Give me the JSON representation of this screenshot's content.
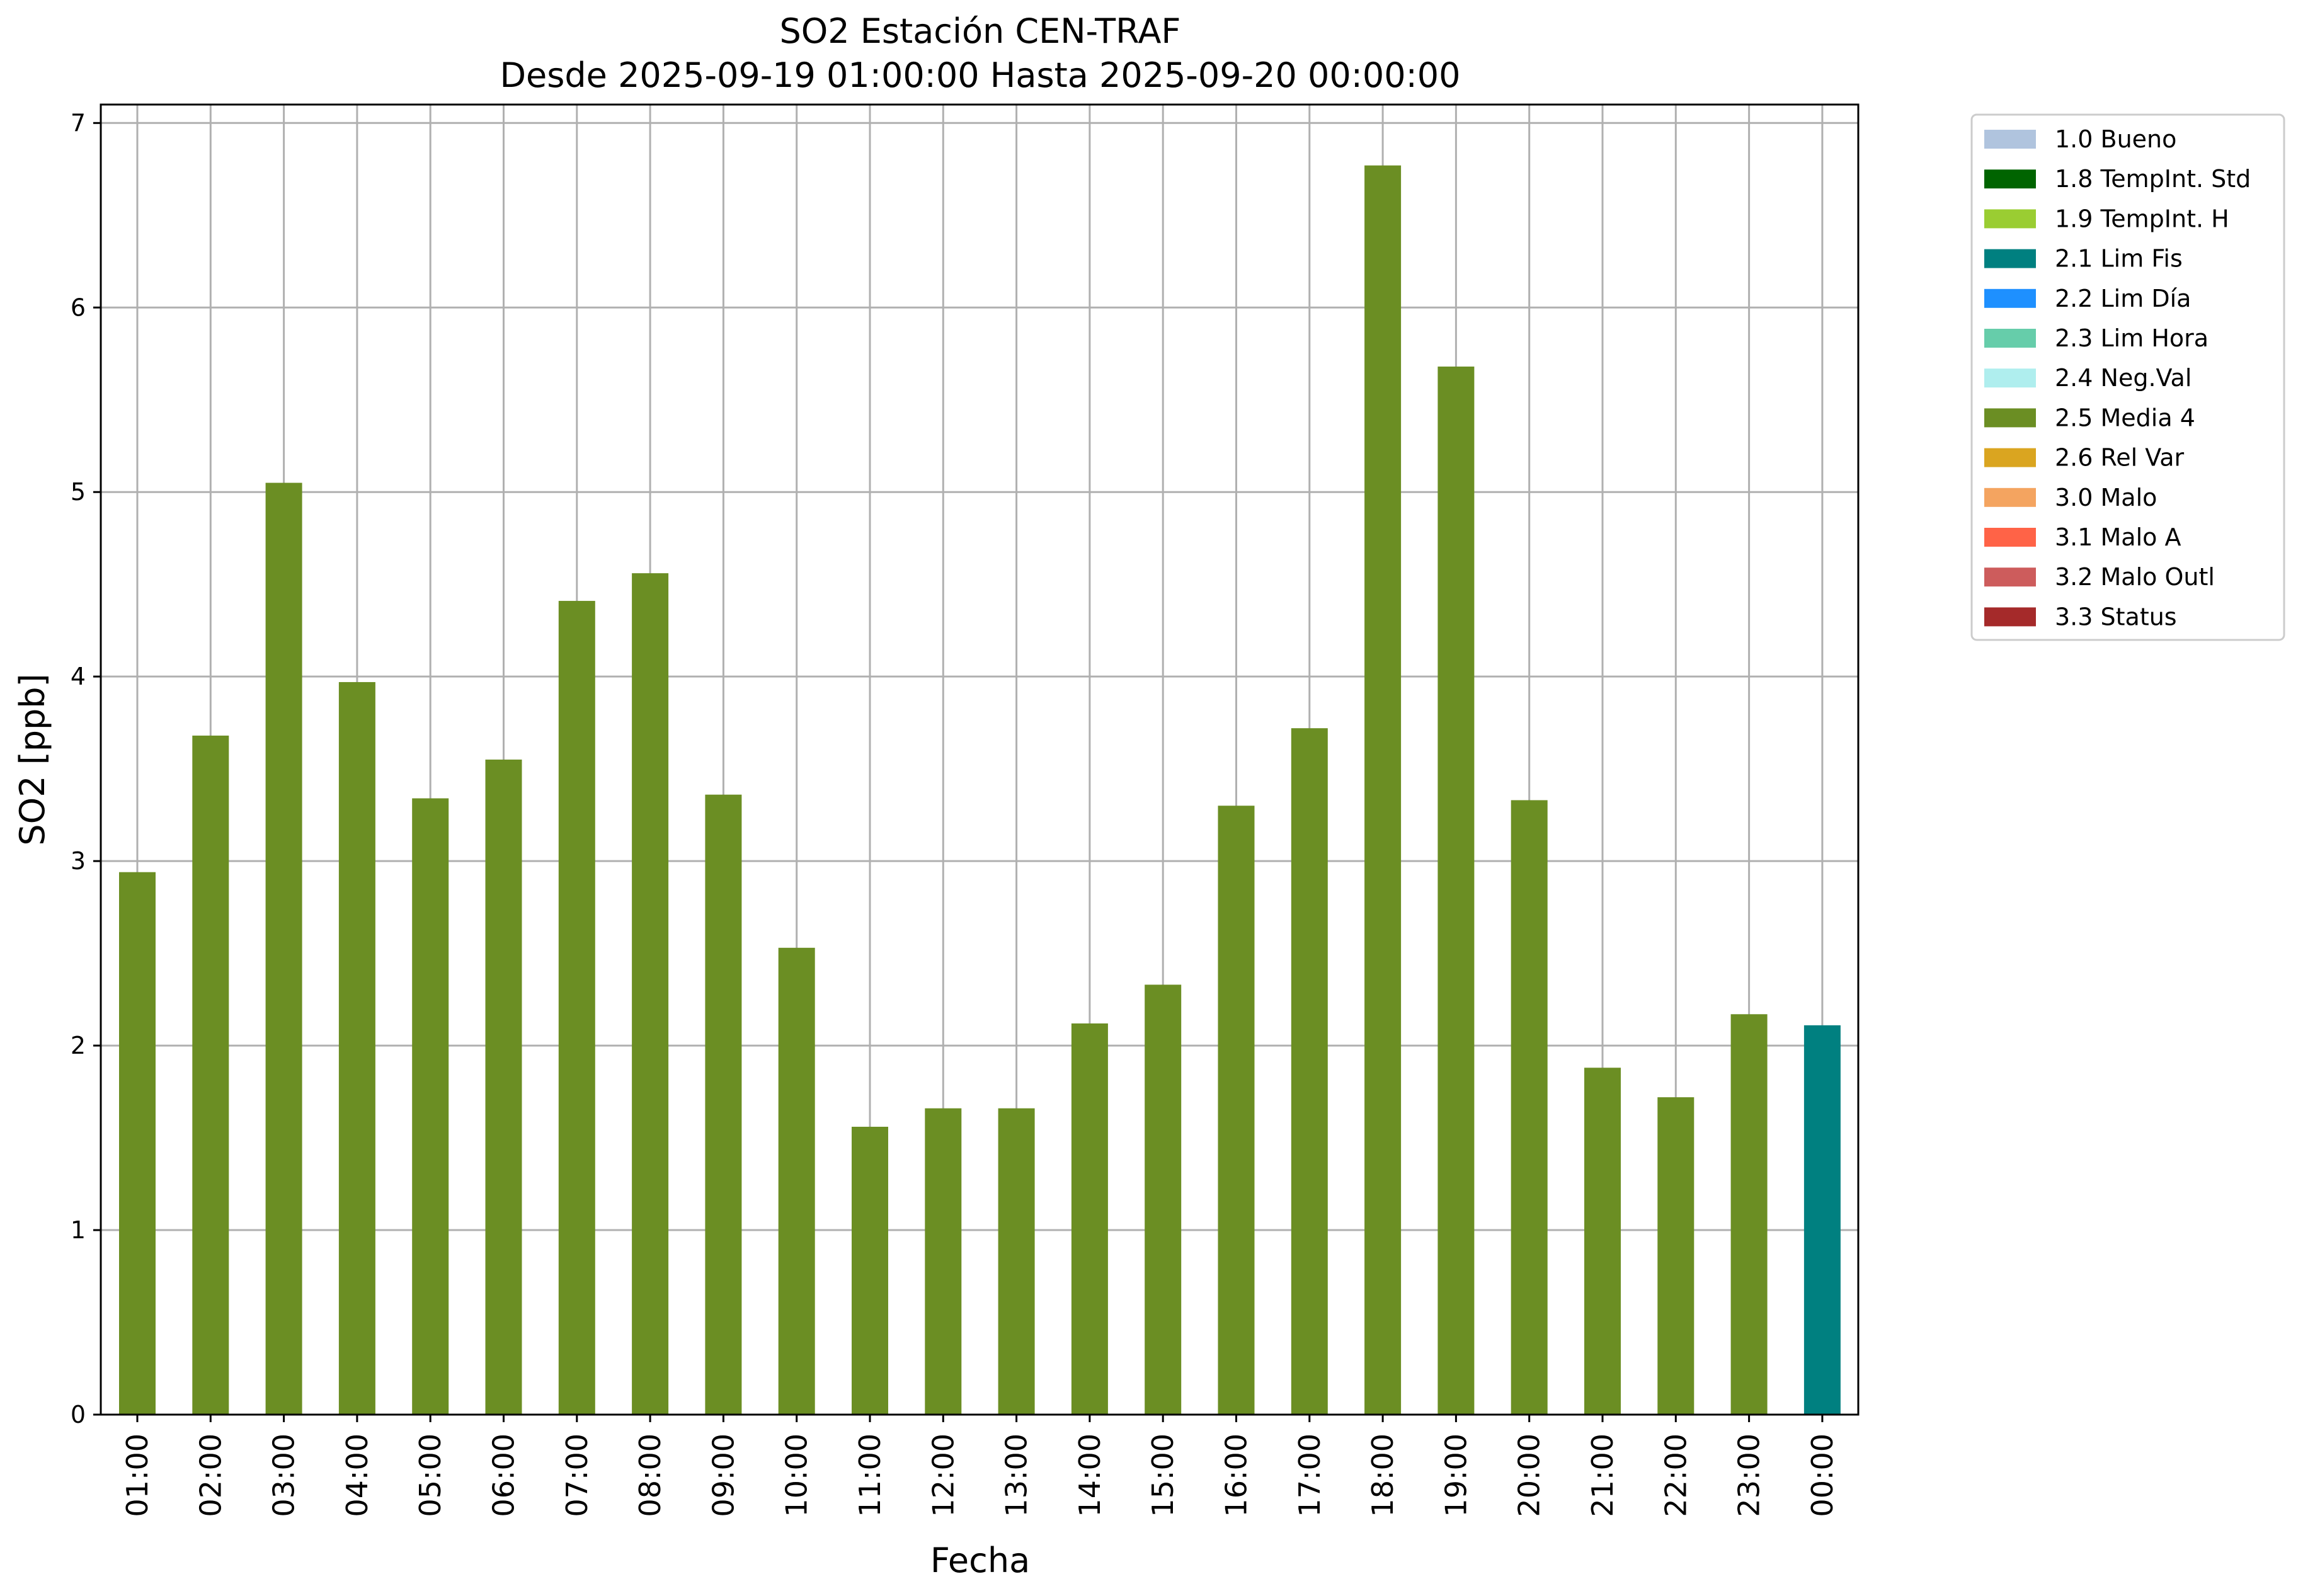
{
  "chart_data": {
    "type": "bar",
    "title": "SO2 Estación CEN-TRAF",
    "subtitle": "Desde 2025-09-19 01:00:00 Hasta 2025-09-20 00:00:00",
    "xlabel": "Fecha",
    "ylabel": "SO2 [ppb]",
    "ylim": [
      0,
      7.1
    ],
    "yticks": [
      "0",
      "1",
      "2",
      "3",
      "4",
      "5",
      "6",
      "7"
    ],
    "grid": true,
    "legend_position": "outside top-right",
    "categories": [
      "01:00",
      "02:00",
      "03:00",
      "04:00",
      "05:00",
      "06:00",
      "07:00",
      "08:00",
      "09:00",
      "10:00",
      "11:00",
      "12:00",
      "13:00",
      "14:00",
      "15:00",
      "16:00",
      "17:00",
      "18:00",
      "19:00",
      "20:00",
      "21:00",
      "22:00",
      "23:00",
      "00:00"
    ],
    "values": [
      2.94,
      3.68,
      5.05,
      3.97,
      3.34,
      3.55,
      4.41,
      4.56,
      3.36,
      2.53,
      1.56,
      1.66,
      1.66,
      2.12,
      2.33,
      3.3,
      3.72,
      6.77,
      5.68,
      3.33,
      1.88,
      1.72,
      2.17,
      2.11
    ],
    "flags": [
      "2.5 Media 4",
      "2.5 Media 4",
      "2.5 Media 4",
      "2.5 Media 4",
      "2.5 Media 4",
      "2.5 Media 4",
      "2.5 Media 4",
      "2.5 Media 4",
      "2.5 Media 4",
      "2.5 Media 4",
      "2.5 Media 4",
      "2.5 Media 4",
      "2.5 Media 4",
      "2.5 Media 4",
      "2.5 Media 4",
      "2.5 Media 4",
      "2.5 Media 4",
      "2.5 Media 4",
      "2.5 Media 4",
      "2.5 Media 4",
      "2.5 Media 4",
      "2.5 Media 4",
      "2.5 Media 4",
      "2.1 Lim Fis"
    ],
    "legend": [
      {
        "label": "1.0 Bueno",
        "color": "#b0c4de"
      },
      {
        "label": "1.8 TempInt. Std",
        "color": "#006400"
      },
      {
        "label": "1.9 TempInt. H",
        "color": "#9acd32"
      },
      {
        "label": "2.1 Lim Fis",
        "color": "#008080"
      },
      {
        "label": "2.2 Lim Día",
        "color": "#1e90ff"
      },
      {
        "label": "2.3 Lim Hora",
        "color": "#66cdaa"
      },
      {
        "label": "2.4 Neg.Val",
        "color": "#afeeee"
      },
      {
        "label": "2.5 Media 4",
        "color": "#6b8e23"
      },
      {
        "label": "2.6 Rel Var",
        "color": "#daa520"
      },
      {
        "label": "3.0 Malo",
        "color": "#f4a460"
      },
      {
        "label": "3.1 Malo A",
        "color": "#ff6347"
      },
      {
        "label": "3.2 Malo Outl",
        "color": "#cd5c5c"
      },
      {
        "label": "3.3 Status",
        "color": "#a52a2a"
      }
    ]
  }
}
